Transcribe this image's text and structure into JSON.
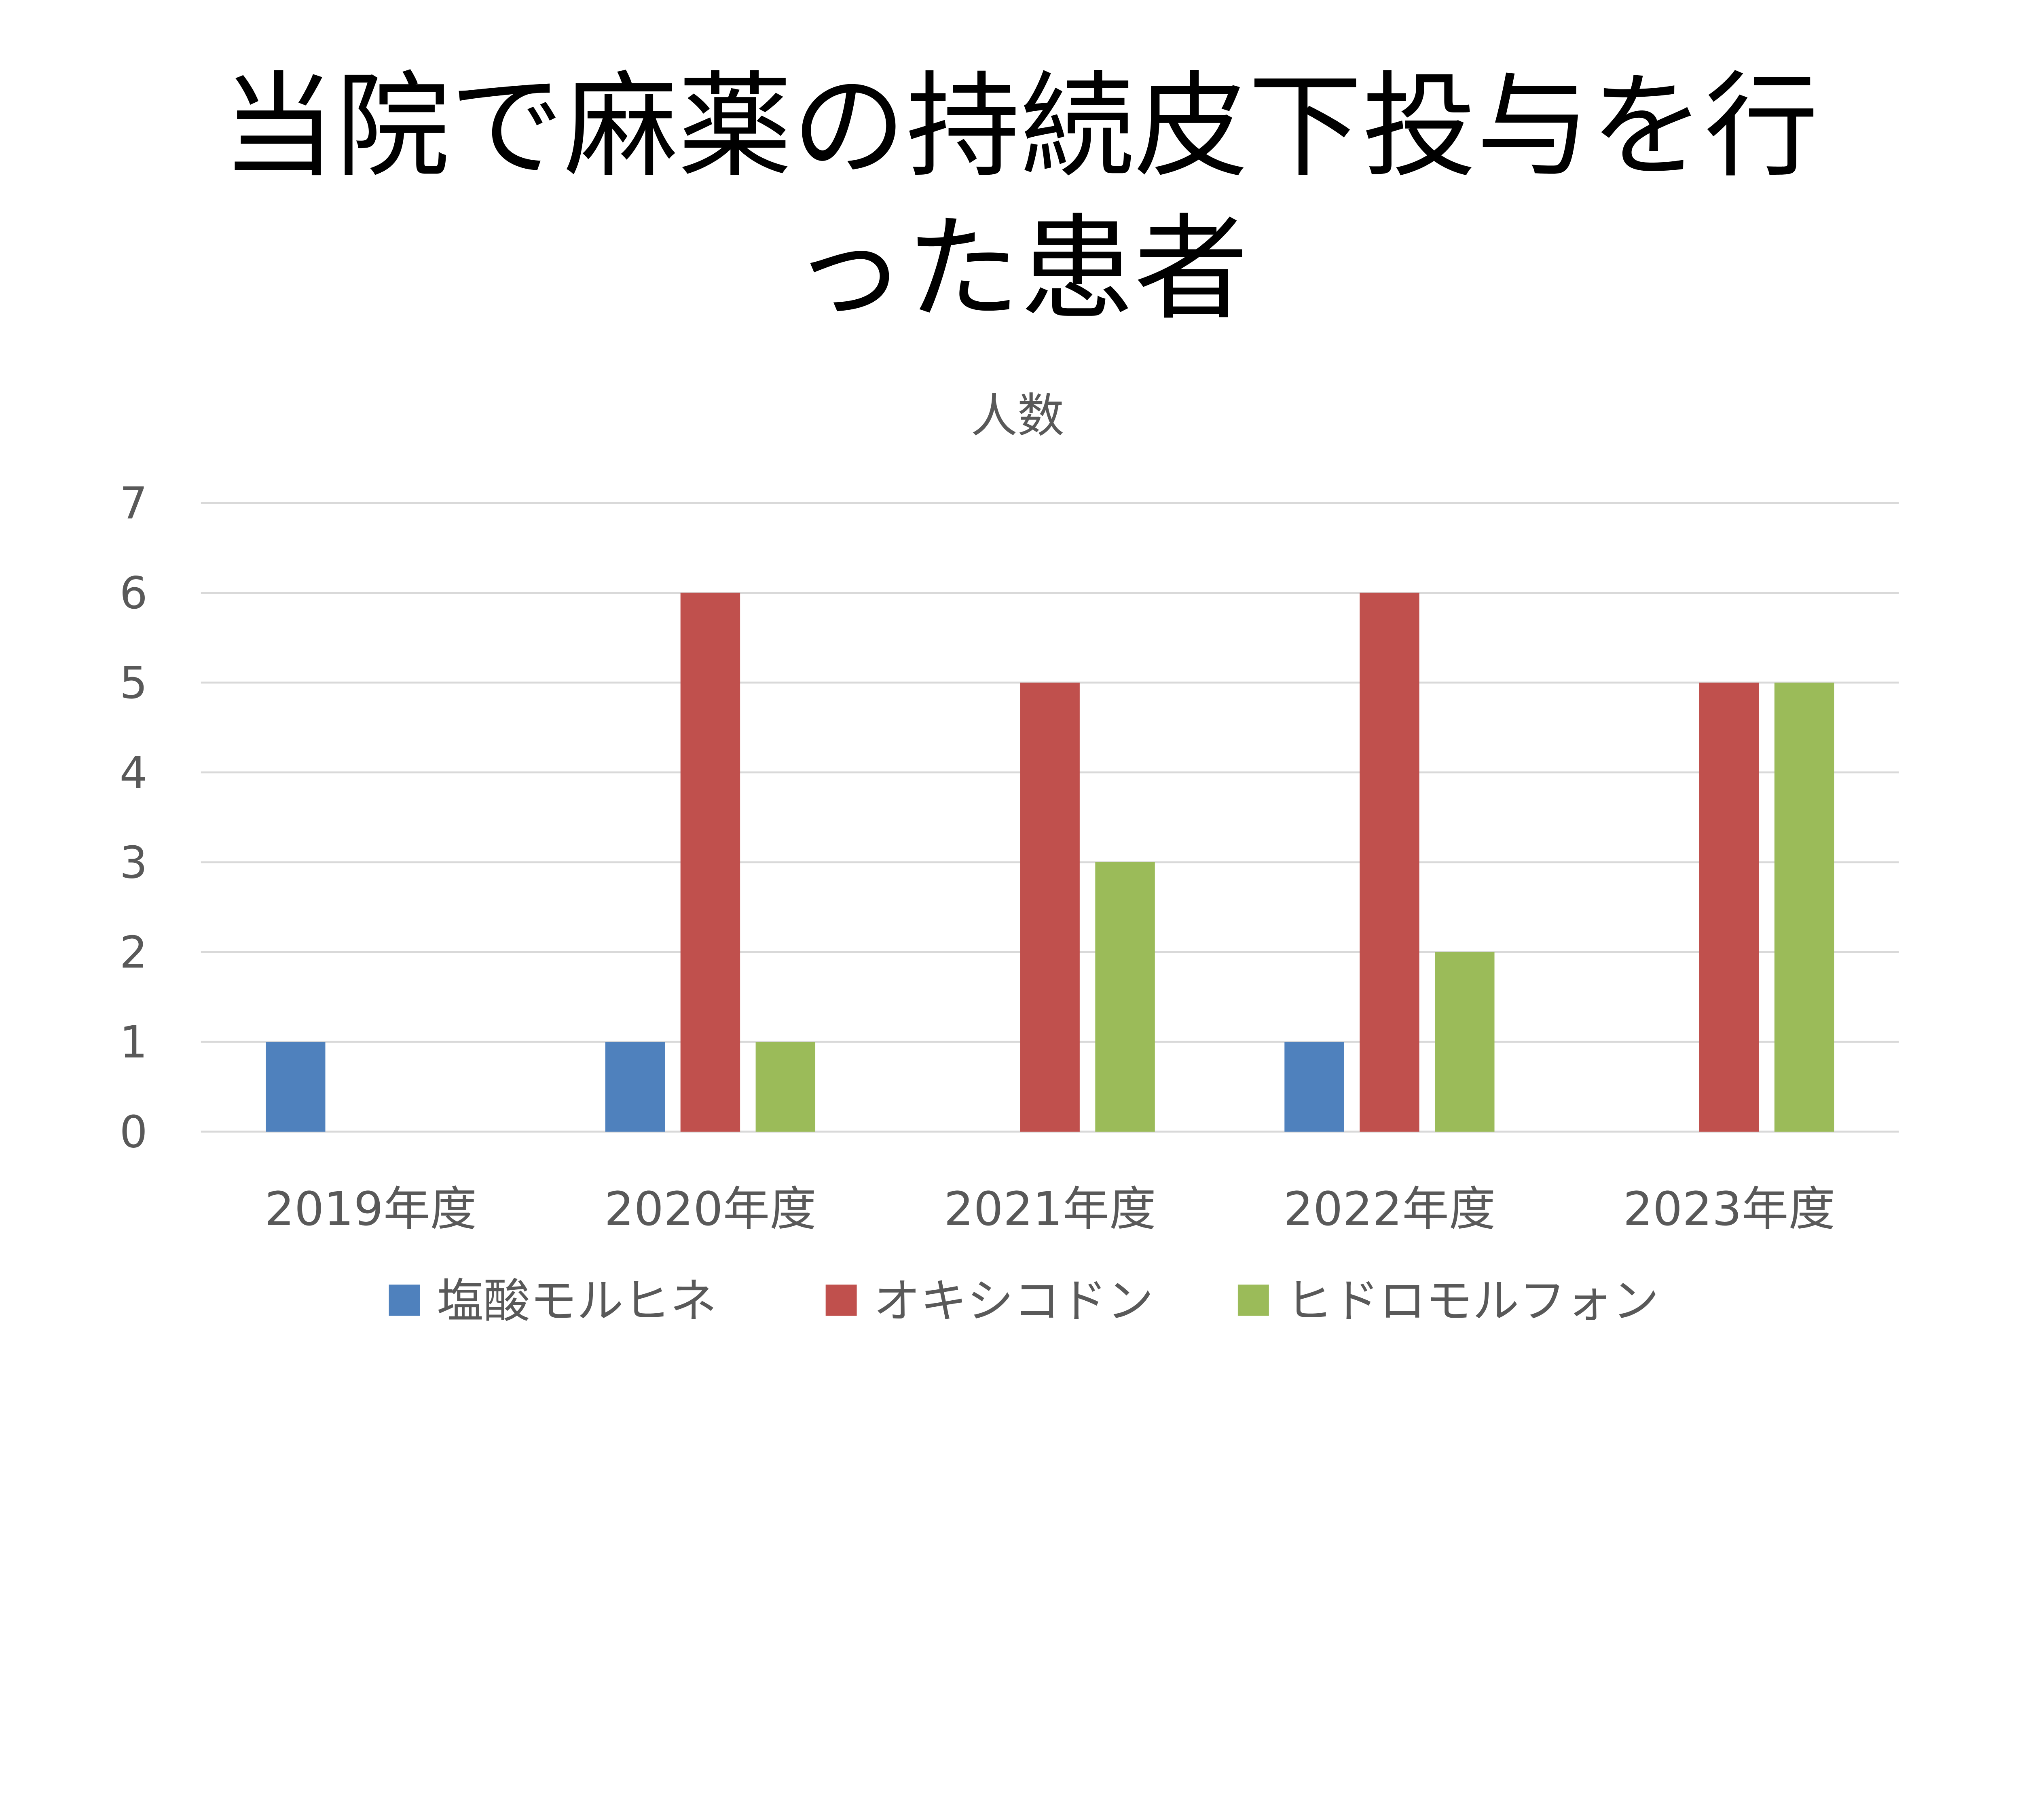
{
  "chart_data": {
    "type": "bar",
    "title_lines": [
      "当院で麻薬の持続皮下投与を行",
      "った患者"
    ],
    "subtitle": "人数",
    "categories": [
      "2019年度",
      "2020年度",
      "2021年度",
      "2022年度",
      "2023年度"
    ],
    "series": [
      {
        "name": "塩酸モルヒネ",
        "color": "#4f81bd",
        "values": [
          1,
          1,
          0,
          1,
          0
        ]
      },
      {
        "name": "オキシコドン",
        "color": "#c0504d",
        "values": [
          0,
          6,
          5,
          6,
          5
        ]
      },
      {
        "name": "ヒドロモルフォン",
        "color": "#9bbb59",
        "values": [
          0,
          1,
          3,
          2,
          5
        ]
      }
    ],
    "ylim": [
      0,
      7
    ],
    "yticks": [
      "0",
      "1",
      "2",
      "3",
      "4",
      "5",
      "6",
      "7"
    ],
    "grid": true,
    "legend": "bottom"
  }
}
